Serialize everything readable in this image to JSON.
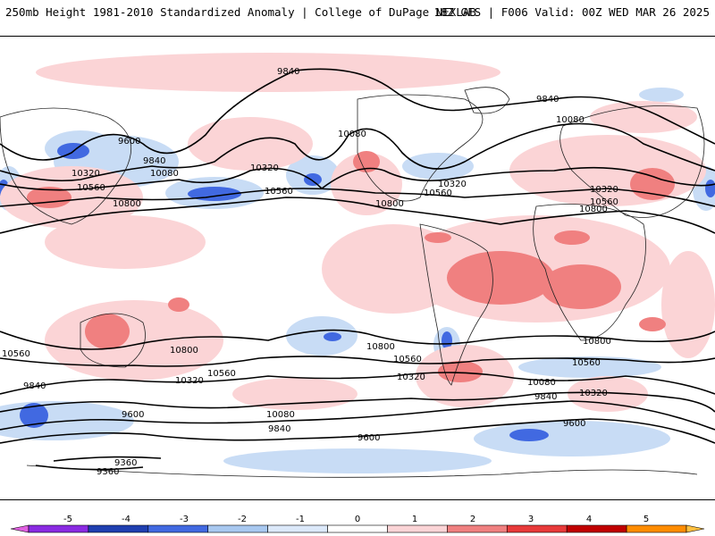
{
  "header": {
    "title_left": "250mb Height 1981-2010 Standardized Anomaly | College of DuPage NEXLAB",
    "title_right": "18Z GFS | F006 Valid: 00Z WED MAR 26 2025"
  },
  "contour_labels": [
    "9840",
    "9600",
    "10320",
    "10080",
    "10560",
    "10800",
    "9360"
  ],
  "colorbar": {
    "ticks": [
      "-5",
      "-4",
      "-3",
      "-2",
      "-1",
      "0",
      "1",
      "2",
      "3",
      "4",
      "5"
    ],
    "colors": [
      "#e060e0",
      "#8a2be2",
      "#1f3fb0",
      "#4169e1",
      "#a8c8f0",
      "#dce9fa",
      "#ffffff",
      "#fbd4d6",
      "#f08080",
      "#e83a3a",
      "#c00000",
      "#ff8c00",
      "#ffc040"
    ]
  }
}
